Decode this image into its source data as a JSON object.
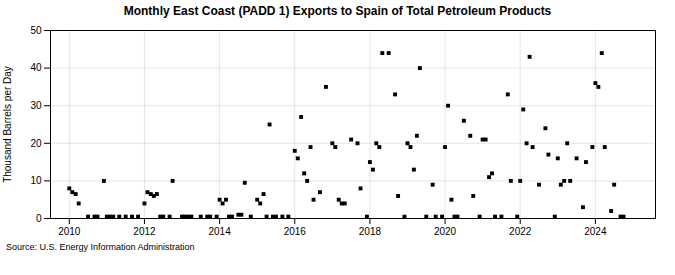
{
  "chart_data": {
    "type": "scatter",
    "title": "Monthly East Coast (PADD 1) Exports to Spain of Total Petroleum Products",
    "ylabel": "Thousand Barrels per Day",
    "annotations": [
      "Source: U.S. Energy Information Administration"
    ],
    "marker": "square",
    "grid": true,
    "xlim": [
      2009.5,
      2025.6
    ],
    "xticks": [
      2010,
      2012,
      2014,
      2016,
      2018,
      2020,
      2022,
      2024
    ],
    "ylim": [
      0,
      50
    ],
    "yticks": [
      0,
      10,
      20,
      30,
      40,
      50
    ],
    "x": [
      2010.0,
      2010.08,
      2010.17,
      2010.25,
      2010.5,
      2010.67,
      2010.75,
      2010.92,
      2011.0,
      2011.08,
      2011.17,
      2011.33,
      2011.5,
      2011.67,
      2011.83,
      2012.0,
      2012.08,
      2012.17,
      2012.25,
      2012.33,
      2012.42,
      2012.5,
      2012.67,
      2012.75,
      2013.0,
      2013.08,
      2013.17,
      2013.25,
      2013.5,
      2013.67,
      2013.75,
      2013.92,
      2014.0,
      2014.08,
      2014.17,
      2014.25,
      2014.33,
      2014.5,
      2014.58,
      2014.67,
      2014.83,
      2015.0,
      2015.08,
      2015.17,
      2015.25,
      2015.33,
      2015.42,
      2015.5,
      2015.67,
      2015.83,
      2016.0,
      2016.08,
      2016.17,
      2016.25,
      2016.33,
      2016.42,
      2016.5,
      2016.67,
      2016.83,
      2017.0,
      2017.08,
      2017.17,
      2017.25,
      2017.33,
      2017.5,
      2017.67,
      2017.75,
      2017.92,
      2018.0,
      2018.08,
      2018.17,
      2018.25,
      2018.33,
      2018.5,
      2018.67,
      2018.75,
      2018.92,
      2019.0,
      2019.08,
      2019.17,
      2019.25,
      2019.33,
      2019.5,
      2019.67,
      2019.75,
      2019.92,
      2020.0,
      2020.08,
      2020.17,
      2020.25,
      2020.33,
      2020.5,
      2020.67,
      2020.75,
      2020.92,
      2021.0,
      2021.08,
      2021.17,
      2021.25,
      2021.33,
      2021.5,
      2021.67,
      2021.75,
      2021.92,
      2022.0,
      2022.08,
      2022.17,
      2022.25,
      2022.33,
      2022.5,
      2022.67,
      2022.75,
      2022.92,
      2023.0,
      2023.08,
      2023.17,
      2023.25,
      2023.33,
      2023.5,
      2023.67,
      2023.75,
      2023.92,
      2024.0,
      2024.08,
      2024.17,
      2024.25,
      2024.42,
      2024.5,
      2024.67,
      2024.75
    ],
    "values": [
      8.0,
      7.0,
      6.5,
      4.0,
      0.5,
      0.5,
      0.5,
      10.0,
      0.5,
      0.5,
      0.5,
      0.5,
      0.5,
      0.5,
      0.5,
      4.0,
      7.0,
      6.5,
      6.0,
      6.5,
      0.5,
      0.5,
      0.5,
      10.0,
      0.5,
      0.5,
      0.5,
      0.5,
      0.5,
      0.5,
      0.5,
      0.5,
      5.0,
      4.0,
      5.0,
      0.5,
      0.5,
      1.0,
      1.0,
      9.5,
      0.5,
      5.0,
      4.0,
      6.5,
      0.5,
      25.0,
      0.5,
      0.5,
      0.5,
      0.5,
      18.0,
      16.0,
      27.0,
      12.0,
      10.0,
      19.0,
      5.0,
      7.0,
      35.0,
      20.0,
      19.0,
      5.0,
      4.0,
      4.0,
      21.0,
      20.0,
      8.0,
      0.5,
      15.0,
      13.0,
      20.0,
      19.0,
      44.0,
      44.0,
      33.0,
      6.0,
      0.5,
      20.0,
      19.0,
      13.0,
      22.0,
      40.0,
      0.5,
      9.0,
      0.5,
      0.5,
      19.0,
      30.0,
      5.0,
      0.5,
      0.5,
      26.0,
      22.0,
      6.0,
      0.5,
      21.0,
      21.0,
      11.0,
      12.0,
      0.5,
      0.5,
      33.0,
      10.0,
      0.5,
      10.0,
      29.0,
      20.0,
      43.0,
      19.0,
      9.0,
      24.0,
      17.0,
      0.5,
      16.0,
      9.0,
      10.0,
      20.0,
      10.0,
      16.0,
      3.0,
      15.0,
      19.0,
      36.0,
      35.0,
      44.0,
      19.0,
      2.0,
      9.0,
      0.5,
      0.5
    ]
  }
}
